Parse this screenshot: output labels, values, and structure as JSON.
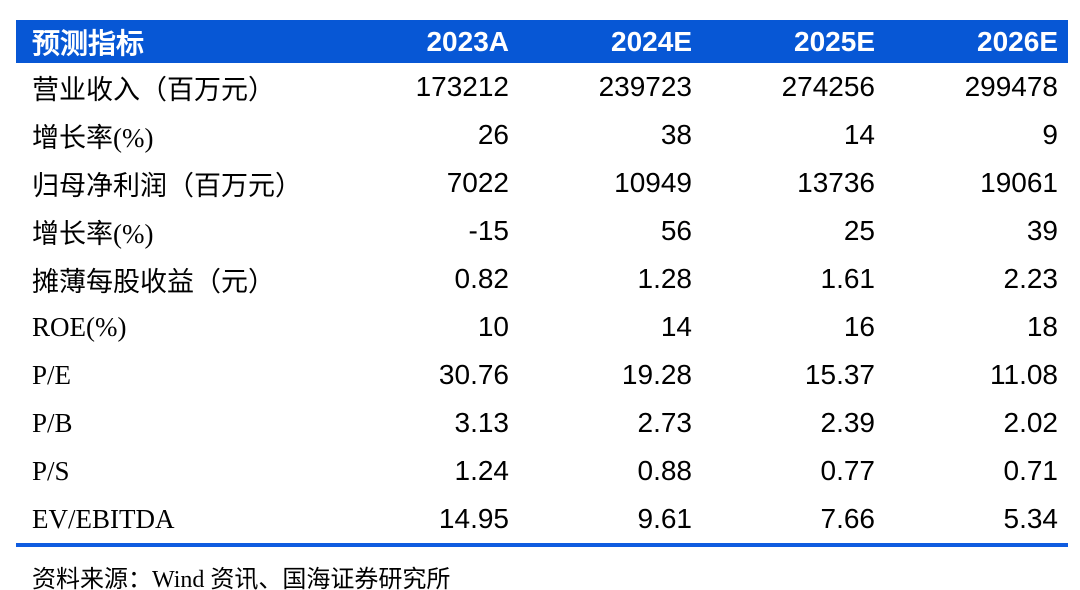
{
  "table": {
    "header": {
      "metric": "预测指标",
      "years": [
        "2023A",
        "2024E",
        "2025E",
        "2026E"
      ]
    },
    "rows": [
      {
        "label": "营业收入（百万元）",
        "values": [
          "173212",
          "239723",
          "274256",
          "299478"
        ]
      },
      {
        "label": "增长率(%)",
        "values": [
          "26",
          "38",
          "14",
          "9"
        ]
      },
      {
        "label": "归母净利润（百万元）",
        "values": [
          "7022",
          "10949",
          "13736",
          "19061"
        ]
      },
      {
        "label": "增长率(%)",
        "values": [
          "-15",
          "56",
          "25",
          "39"
        ]
      },
      {
        "label": "摊薄每股收益（元）",
        "values": [
          "0.82",
          "1.28",
          "1.61",
          "2.23"
        ]
      },
      {
        "label": "ROE(%)",
        "values": [
          "10",
          "14",
          "16",
          "18"
        ]
      },
      {
        "label": "P/E",
        "values": [
          "30.76",
          "19.28",
          "15.37",
          "11.08"
        ]
      },
      {
        "label": "P/B",
        "values": [
          "3.13",
          "2.73",
          "2.39",
          "2.02"
        ]
      },
      {
        "label": "P/S",
        "values": [
          "1.24",
          "0.88",
          "0.77",
          "0.71"
        ]
      },
      {
        "label": "EV/EBITDA",
        "values": [
          "14.95",
          "9.61",
          "7.66",
          "5.34"
        ]
      }
    ]
  },
  "footer": {
    "source": "资料来源：Wind 资讯、国海证券研究所"
  },
  "colors": {
    "header_bg": "#0757d5",
    "header_text": "#ffffff",
    "bottom_rule": "#0f5ce0",
    "body_text": "#000000"
  },
  "chart_data": {
    "type": "table",
    "title": "预测指标",
    "categories": [
      "2023A",
      "2024E",
      "2025E",
      "2026E"
    ],
    "series": [
      {
        "name": "营业收入（百万元）",
        "values": [
          173212,
          239723,
          274256,
          299478
        ]
      },
      {
        "name": "增长率(%)",
        "values": [
          26,
          38,
          14,
          9
        ]
      },
      {
        "name": "归母净利润（百万元）",
        "values": [
          7022,
          10949,
          13736,
          19061
        ]
      },
      {
        "name": "增长率(%)",
        "values": [
          -15,
          56,
          25,
          39
        ]
      },
      {
        "name": "摊薄每股收益（元）",
        "values": [
          0.82,
          1.28,
          1.61,
          2.23
        ]
      },
      {
        "name": "ROE(%)",
        "values": [
          10,
          14,
          16,
          18
        ]
      },
      {
        "name": "P/E",
        "values": [
          30.76,
          19.28,
          15.37,
          11.08
        ]
      },
      {
        "name": "P/B",
        "values": [
          3.13,
          2.73,
          2.39,
          2.02
        ]
      },
      {
        "name": "P/S",
        "values": [
          1.24,
          0.88,
          0.77,
          0.71
        ]
      },
      {
        "name": "EV/EBITDA",
        "values": [
          14.95,
          9.61,
          7.66,
          5.34
        ]
      }
    ],
    "source": "资料来源：Wind 资讯、国海证券研究所",
    "legend_position": "none",
    "grid": false
  }
}
